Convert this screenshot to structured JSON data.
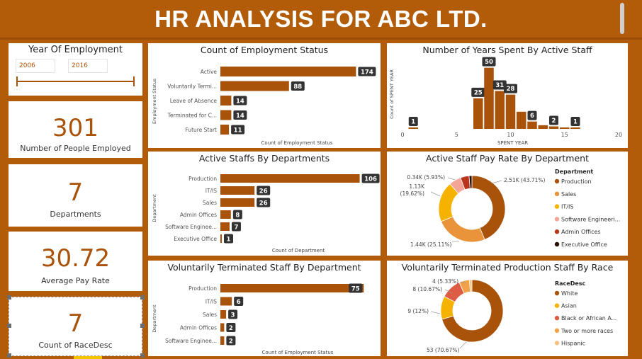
{
  "header": {
    "title": "HR ANALYSIS FOR ABC LTD."
  },
  "year_filter": {
    "title": "Year Of Employment",
    "start": "2006",
    "end": "2016"
  },
  "kpis": [
    {
      "value": "301",
      "label": "Number of People Employed"
    },
    {
      "value": "7",
      "label": "Departments"
    },
    {
      "value": "30.72",
      "label": "Average Pay Rate"
    },
    {
      "value": "7",
      "label": "Count of RaceDesc"
    }
  ],
  "colors": {
    "primary": "#a8520a",
    "light_orange": "#e9933a",
    "yellow": "#f5b300",
    "pink": "#f4a598",
    "red": "#b8361e",
    "dark": "#2a0d05",
    "race_red": "#dd5c43",
    "race_orange": "#f3a24a",
    "race_pale": "#f7c27f",
    "badge": "#333333"
  },
  "chart_data": [
    {
      "type": "bar",
      "orientation": "horizontal",
      "title": "Count of Employment Status",
      "categories": [
        "Active",
        "Voluntarily Termi...",
        "Leave of Absence",
        "Terminated for C...",
        "Future Start"
      ],
      "values": [
        174,
        88,
        14,
        14,
        11
      ],
      "xlabel": "Count of Employment Status",
      "ylabel": "Employment Status",
      "xlim": [
        0,
        180
      ]
    },
    {
      "type": "bar",
      "title": "Number of Years Spent By Active Staff",
      "x": [
        1,
        7,
        8,
        9,
        10,
        11,
        12,
        13,
        14,
        15,
        16
      ],
      "values": [
        1,
        25,
        50,
        31,
        28,
        14,
        6,
        3,
        2,
        1,
        1
      ],
      "labeled": [
        true,
        true,
        true,
        true,
        true,
        false,
        true,
        false,
        true,
        false,
        true
      ],
      "xlabel": "SPENT YEAR",
      "ylabel": "Count of SPENT YEAR",
      "xlim": [
        0,
        20
      ],
      "xticks": [
        0,
        5,
        10,
        15,
        20
      ],
      "ylim": [
        0,
        55
      ]
    },
    {
      "type": "bar",
      "orientation": "horizontal",
      "title": "Active Staffs By Departments",
      "categories": [
        "Production",
        "IT/IS",
        "Sales",
        "Admin Offices",
        "Software Enginee...",
        "Executive Office"
      ],
      "values": [
        106,
        26,
        26,
        8,
        7,
        1
      ],
      "xlabel": "Count of Department",
      "ylabel": "Department",
      "xlim": [
        0,
        110
      ]
    },
    {
      "type": "pie",
      "title": "Active Staff Pay Rate By Department",
      "legend_title": "Department",
      "categories": [
        "Production",
        "Sales",
        "IT/IS",
        "Software Engineeri...",
        "Admin Offices",
        "Executive Office"
      ],
      "values": [
        2.51,
        1.44,
        1.13,
        0.34,
        0.24,
        0.08
      ],
      "labels": [
        "2.51K (43.71%)",
        "1.44K (25.11%)",
        "1.13K (19.62%)",
        "0.34K (5.93%)",
        "",
        ""
      ],
      "legend": "right"
    },
    {
      "type": "bar",
      "orientation": "horizontal",
      "title": "Voluntarily Terminated Staff By Department",
      "categories": [
        "Production",
        "IT/IS",
        "Sales",
        "Admin Offices",
        "Software Enginee..."
      ],
      "values": [
        75,
        6,
        3,
        2,
        2
      ],
      "xlabel": "Count of Employment Status",
      "ylabel": "Department",
      "xlim": [
        0,
        76
      ]
    },
    {
      "type": "pie",
      "title": "Voluntarily Terminated Production Staff By Race",
      "legend_title": "RaceDesc",
      "categories": [
        "White",
        "Asian",
        "Black or African A...",
        "Two or more races",
        "Hispanic"
      ],
      "values": [
        53,
        9,
        8,
        4,
        1
      ],
      "labels": [
        "53 (70.67%)",
        "9 (12%)",
        "8 (10.67%)",
        "4 (5.33%)",
        ""
      ],
      "legend": "right"
    }
  ]
}
